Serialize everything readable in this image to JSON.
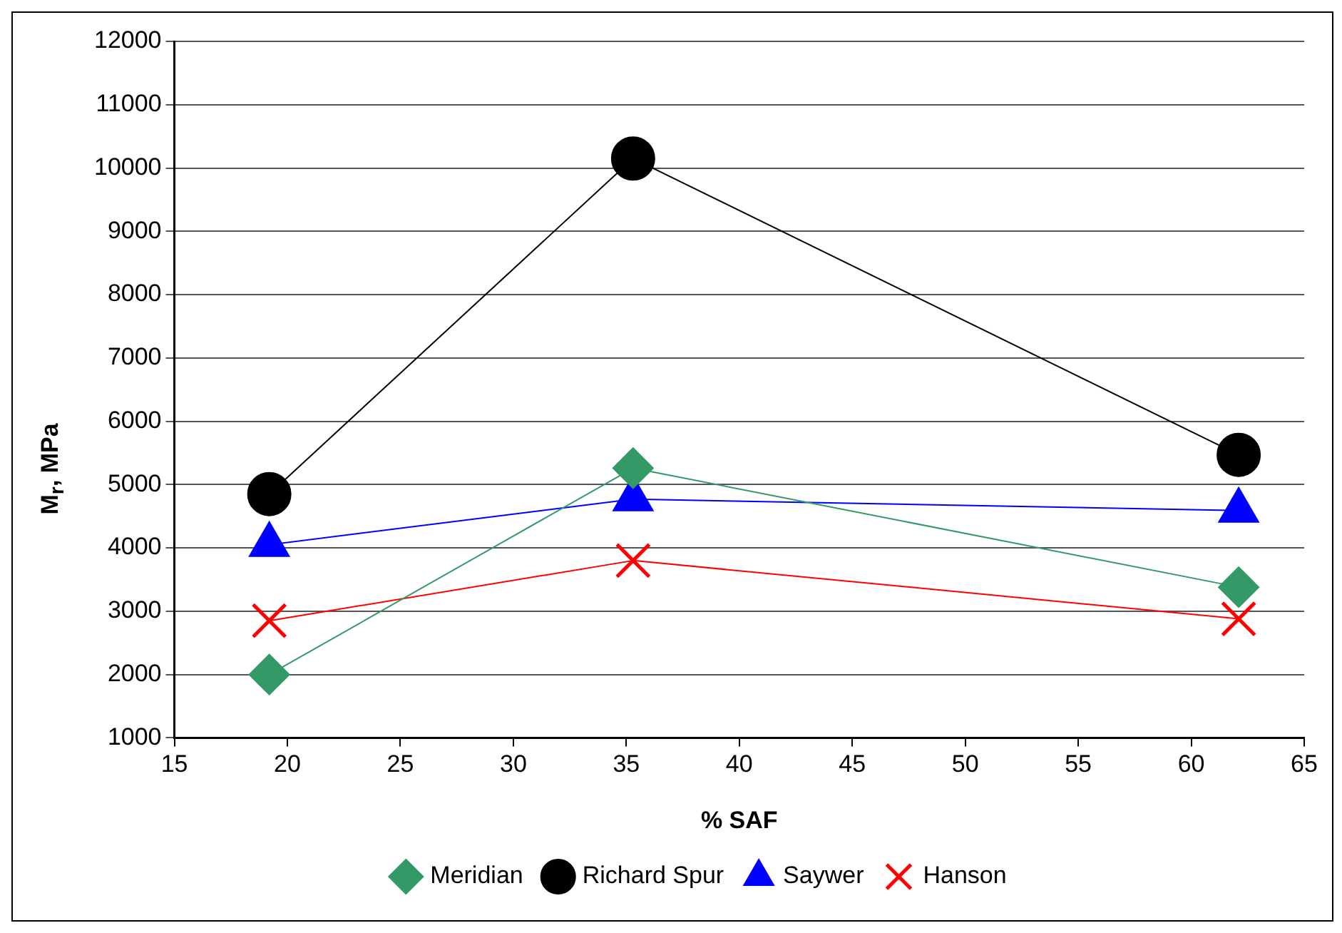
{
  "chart_data": {
    "type": "line",
    "xlabel": "% SAF",
    "ylabel": "M$_{r}$, MPa",
    "xlim": [
      15,
      65
    ],
    "xticks": [
      15,
      20,
      25,
      30,
      35,
      40,
      45,
      50,
      55,
      60,
      65
    ],
    "ylim": [
      1000,
      12000
    ],
    "yticks": [
      1000,
      2000,
      3000,
      4000,
      5000,
      6000,
      7000,
      8000,
      9000,
      10000,
      11000,
      12000
    ],
    "grid": "y",
    "legend": "bottom",
    "series": [
      {
        "name": "Meridian",
        "color": "#339966",
        "marker": "diamond",
        "x": [
          19.2,
          35.3,
          62.1
        ],
        "values": [
          2000,
          5260,
          3380
        ]
      },
      {
        "name": "Richard Spur",
        "color": "#000000",
        "marker": "circle",
        "x": [
          19.2,
          35.3,
          62.1
        ],
        "values": [
          4850,
          10150,
          5470
        ]
      },
      {
        "name": "Saywer",
        "color": "#0000ff",
        "marker": "triangle",
        "x": [
          19.2,
          35.3,
          62.1
        ],
        "values": [
          4050,
          4770,
          4590
        ]
      },
      {
        "name": "Hanson",
        "color": "#ff0000",
        "marker": "cross",
        "x": [
          19.2,
          35.3,
          62.1
        ],
        "values": [
          2850,
          3800,
          2880
        ]
      }
    ]
  }
}
